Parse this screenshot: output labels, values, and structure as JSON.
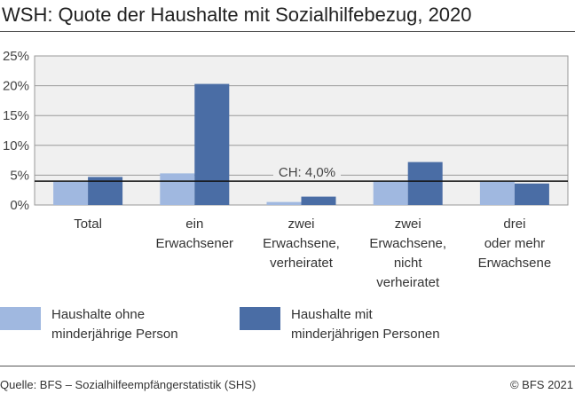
{
  "title": "WSH: Quote der Haushalte mit Sozialhilfebezug, 2020",
  "source": "Quelle: BFS – Sozialhilfeempfängerstatistik (SHS)",
  "copyright": "© BFS 2021",
  "chart_data": {
    "type": "bar",
    "title": "WSH: Quote der Haushalte mit Sozialhilfebezug, 2020",
    "categories": [
      [
        "Total"
      ],
      [
        "ein",
        "Erwachsener"
      ],
      [
        "zwei",
        "Erwachsene,",
        "verheiratet"
      ],
      [
        "zwei",
        "Erwachsene,",
        "nicht",
        "verheiratet"
      ],
      [
        "drei",
        "oder mehr",
        "Erwachsene"
      ]
    ],
    "series": [
      {
        "name": "Haushalte ohne minderjährige Person",
        "legend_lines": [
          "Haushalte ohne",
          "minderjährige Person"
        ],
        "color": "#a0b8e0",
        "values": [
          3.9,
          5.3,
          0.5,
          4.0,
          3.9
        ]
      },
      {
        "name": "Haushalte mit minderjährigen Personen",
        "legend_lines": [
          "Haushalte mit",
          "minderjährigen Personen"
        ],
        "color": "#4a6da5",
        "values": [
          4.7,
          20.3,
          1.4,
          7.2,
          3.6
        ]
      }
    ],
    "reference_line": {
      "label": "CH: 4,0%",
      "value": 4.0
    },
    "ylim": [
      0,
      25
    ],
    "yticks": [
      0,
      5,
      10,
      15,
      20,
      25
    ],
    "ytick_labels": [
      "0%",
      "5%",
      "10%",
      "15%",
      "20%",
      "25%"
    ],
    "grid": true,
    "legend_position": "bottom",
    "plot_background": "#f0f0f0"
  }
}
